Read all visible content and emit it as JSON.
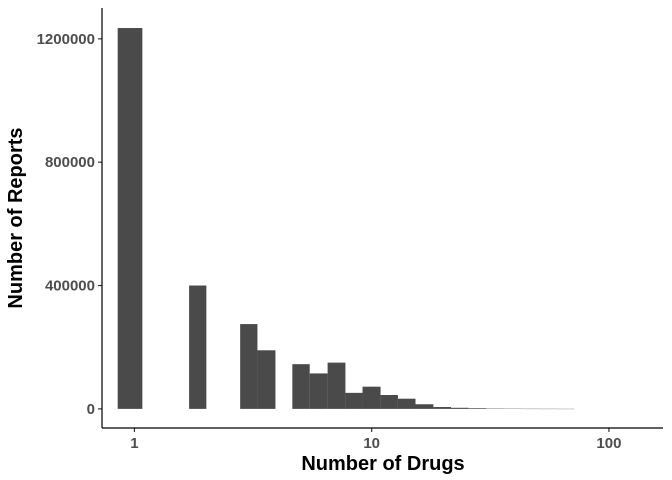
{
  "chart_data": {
    "type": "bar",
    "subtype": "histogram",
    "title": "",
    "xlabel": "Number of Drugs",
    "ylabel": "Number of Reports",
    "x_scale": "log10",
    "xlim": [
      0.73,
      169
    ],
    "ylim": [
      -62000,
      1300000
    ],
    "x_ticks": [
      1,
      10,
      100
    ],
    "x_tick_labels": [
      "1",
      "10",
      "100"
    ],
    "y_ticks": [
      0,
      400000,
      800000,
      1200000
    ],
    "y_tick_labels": [
      "0",
      "400000",
      "800000",
      "1200000"
    ],
    "bar_color": "#4a4a4a",
    "grid": false,
    "legend": "none",
    "bars": [
      {
        "x_start": 0.85,
        "x_end": 1.08,
        "count": 1235000
      },
      {
        "x_start": 1.7,
        "x_end": 2.01,
        "count": 400000
      },
      {
        "x_start": 2.79,
        "x_end": 3.3,
        "count": 275000
      },
      {
        "x_start": 3.3,
        "x_end": 3.93,
        "count": 190000
      },
      {
        "x_start": 4.63,
        "x_end": 5.48,
        "count": 145000
      },
      {
        "x_start": 5.48,
        "x_end": 6.52,
        "count": 115000
      },
      {
        "x_start": 6.52,
        "x_end": 7.75,
        "count": 150000
      },
      {
        "x_start": 7.75,
        "x_end": 9.15,
        "count": 52000
      },
      {
        "x_start": 9.15,
        "x_end": 10.9,
        "count": 72000
      },
      {
        "x_start": 10.9,
        "x_end": 12.9,
        "count": 45000
      },
      {
        "x_start": 12.9,
        "x_end": 15.3,
        "count": 33000
      },
      {
        "x_start": 15.3,
        "x_end": 18.2,
        "count": 15000
      },
      {
        "x_start": 18.2,
        "x_end": 21.6,
        "count": 6000
      },
      {
        "x_start": 21.6,
        "x_end": 25.6,
        "count": 3500
      },
      {
        "x_start": 25.6,
        "x_end": 30.4,
        "count": 2200
      },
      {
        "x_start": 30.4,
        "x_end": 36.0,
        "count": 1200
      },
      {
        "x_start": 36.0,
        "x_end": 42.8,
        "count": 700
      },
      {
        "x_start": 42.8,
        "x_end": 50.8,
        "count": 400
      },
      {
        "x_start": 50.8,
        "x_end": 60.2,
        "count": 250
      },
      {
        "x_start": 60.2,
        "x_end": 71.4,
        "count": 150
      }
    ]
  }
}
